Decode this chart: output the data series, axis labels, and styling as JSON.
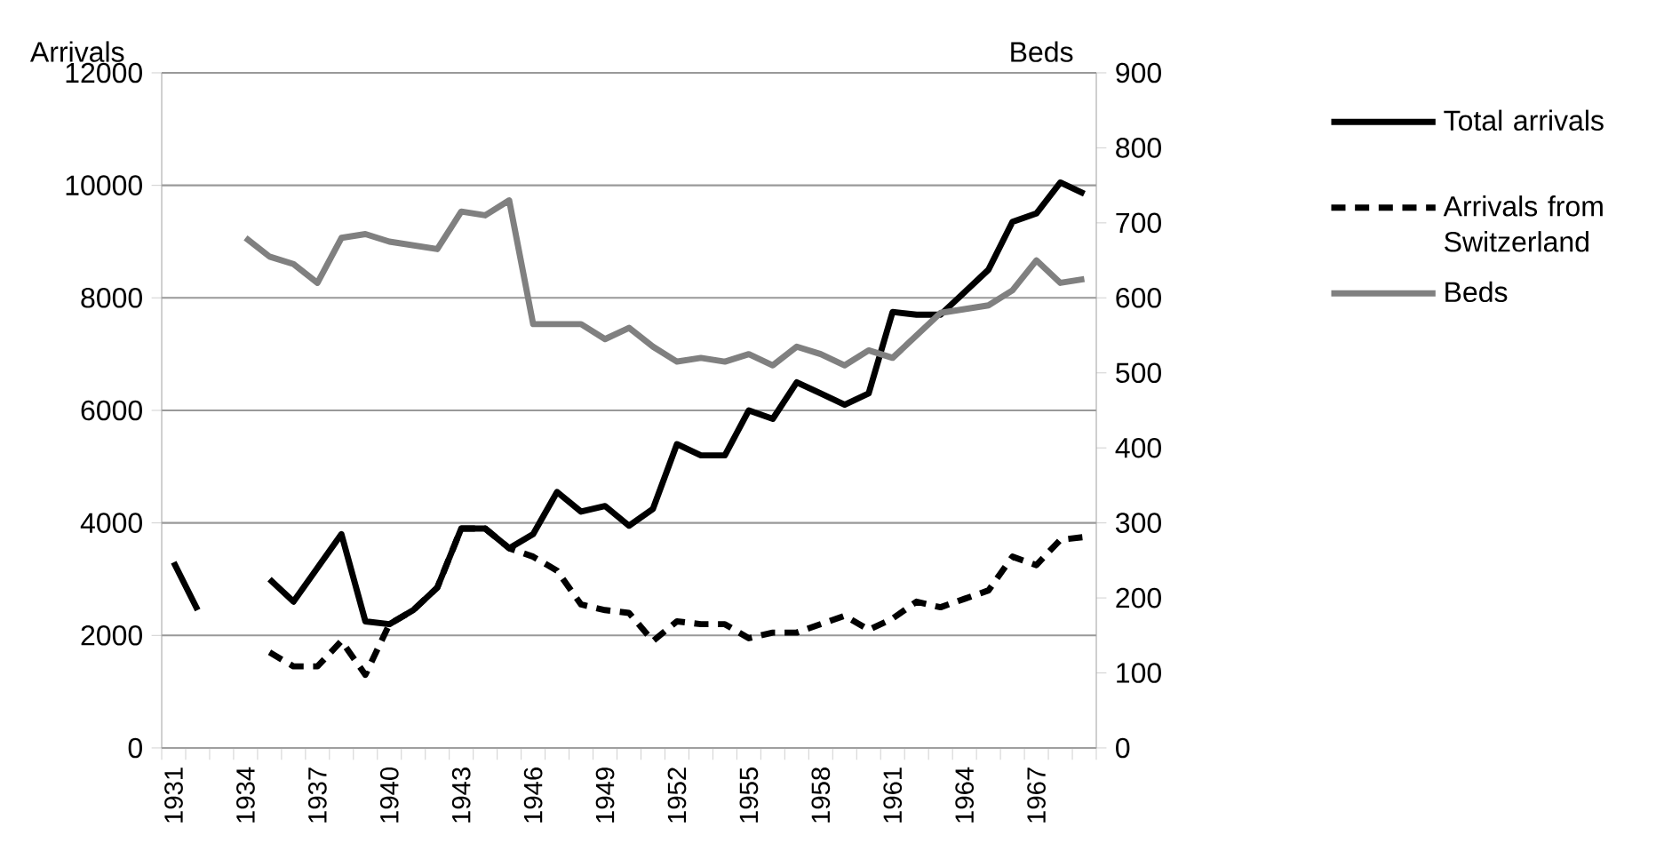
{
  "chart_data": {
    "type": "line",
    "ylabel": "Arrivals",
    "y2label": "Beds",
    "categories": [
      "1931",
      null,
      null,
      "1934",
      null,
      null,
      "1937",
      null,
      null,
      "1940",
      null,
      null,
      "1943",
      null,
      null,
      "1946",
      null,
      null,
      "1949",
      null,
      null,
      "1952",
      null,
      null,
      "1955",
      null,
      null,
      "1958",
      null,
      null,
      "1961",
      null,
      null,
      "1964",
      null,
      null,
      "1967",
      null,
      null
    ],
    "series": [
      {
        "name": "Total arrivals",
        "color": "#000000",
        "line_style": "solid",
        "values": [
          3300,
          2450,
          null,
          null,
          3000,
          2600,
          3200,
          3800,
          2250,
          2200,
          2450,
          2850,
          3900,
          3900,
          3550,
          3800,
          4550,
          4200,
          4300,
          3950,
          4250,
          5400,
          5200,
          5200,
          6000,
          5850,
          6500,
          6300,
          6100,
          6300,
          7750,
          7700,
          7700,
          8100,
          8500,
          9350,
          9500,
          10050,
          9850
        ]
      },
      {
        "name": "Arrivals from Switzerland",
        "color": "#000000",
        "line_style": "dashed",
        "values": [
          null,
          null,
          null,
          null,
          1700,
          1450,
          1450,
          1900,
          1300,
          2200,
          2450,
          2850,
          3900,
          3900,
          3550,
          3400,
          3150,
          2550,
          2450,
          2400,
          1900,
          2250,
          2200,
          2200,
          1950,
          2050,
          2050,
          2200,
          2350,
          2100,
          2300,
          2600,
          2500,
          2650,
          2800,
          3400,
          3250,
          3700,
          3750
        ]
      },
      {
        "name": "Beds",
        "color": "#808080",
        "line_style": "solid",
        "axis": "y2",
        "values": [
          null,
          null,
          null,
          680,
          655,
          645,
          620,
          680,
          685,
          675,
          670,
          665,
          715,
          710,
          730,
          565,
          565,
          565,
          545,
          560,
          535,
          515,
          520,
          515,
          525,
          510,
          535,
          525,
          510,
          530,
          520,
          550,
          580,
          585,
          590,
          610,
          650,
          620,
          625
        ]
      }
    ],
    "ylim": [
      0,
      12000
    ],
    "yticks": [
      0,
      2000,
      4000,
      6000,
      8000,
      10000,
      12000
    ],
    "y2lim": [
      0,
      900
    ],
    "y2ticks": [
      0,
      100,
      200,
      300,
      400,
      500,
      600,
      700,
      800,
      900
    ],
    "grid": "y",
    "legend": "right",
    "marker": "none"
  }
}
